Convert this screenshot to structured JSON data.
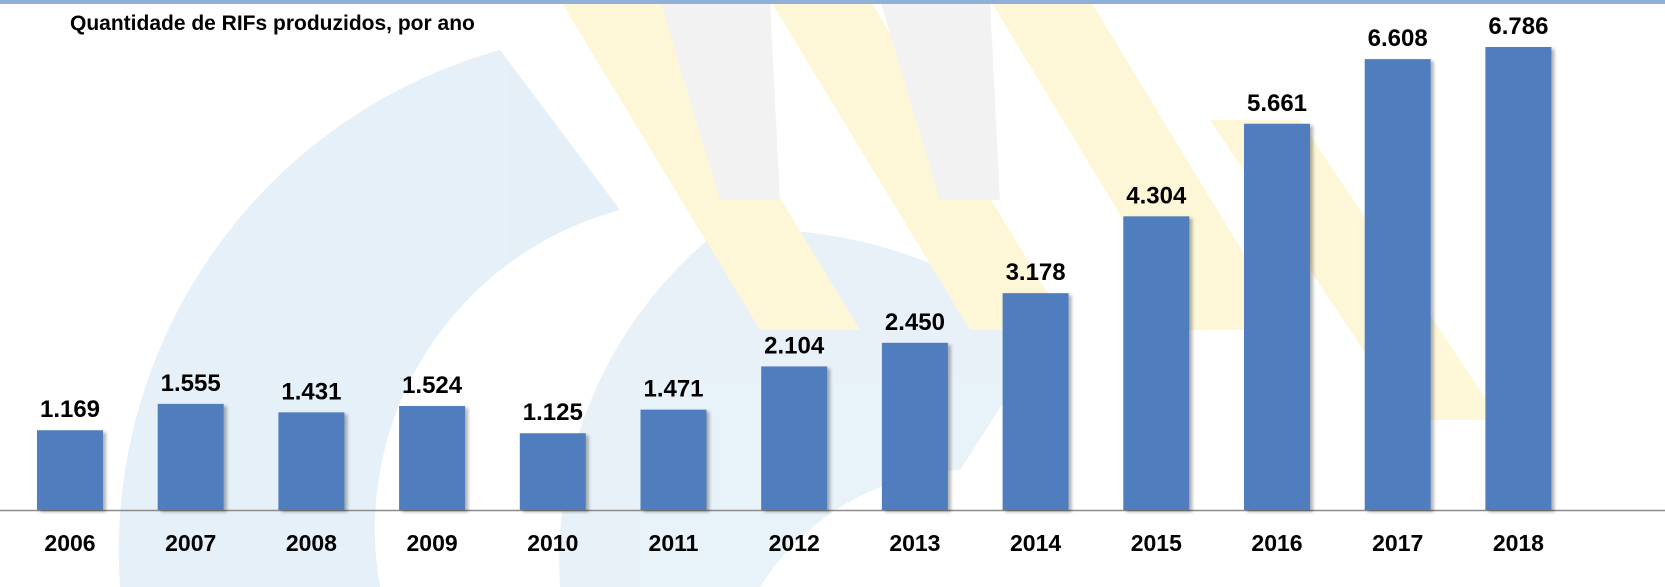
{
  "chart_data": {
    "type": "bar",
    "title": "Quantidade de RIFs produzidos, por ano",
    "categories": [
      "2006",
      "2007",
      "2008",
      "2009",
      "2010",
      "2011",
      "2012",
      "2013",
      "2014",
      "2015",
      "2016",
      "2017",
      "2018"
    ],
    "values": [
      1169,
      1555,
      1431,
      1524,
      1125,
      1471,
      2104,
      2450,
      3178,
      4304,
      5661,
      6608,
      6786
    ],
    "value_labels": [
      "1.169",
      "1.555",
      "1.431",
      "1.524",
      "1.125",
      "1.471",
      "2.104",
      "2.450",
      "3.178",
      "4.304",
      "5.661",
      "6.608",
      "6.786"
    ],
    "color": "#4f7dbd"
  }
}
